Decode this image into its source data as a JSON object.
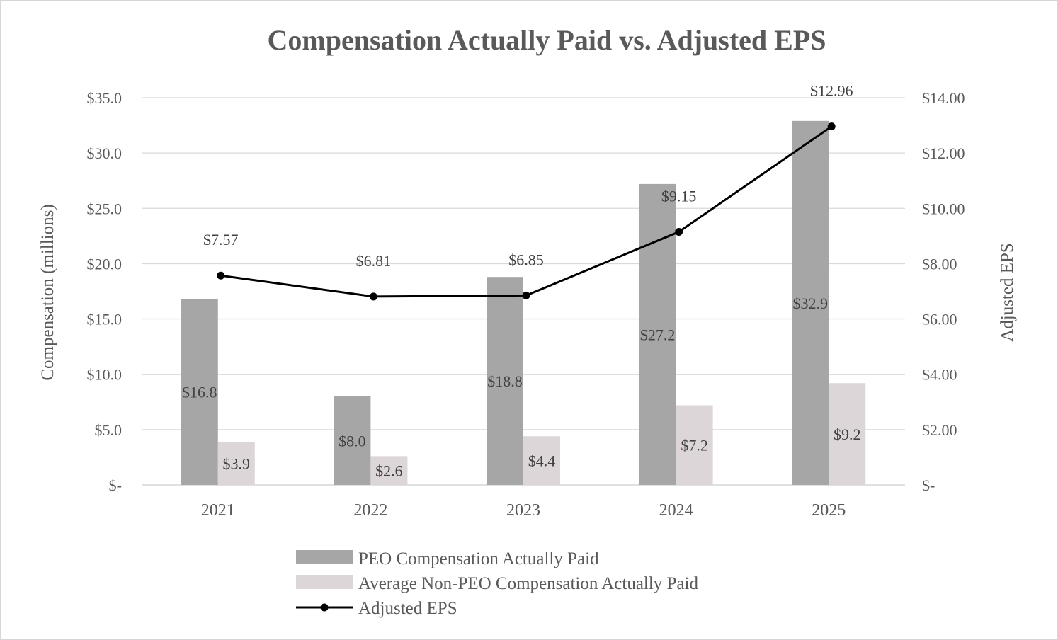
{
  "chart_data": {
    "type": "bar",
    "title": "Compensation Actually Paid vs. Adjusted EPS",
    "categories": [
      "2021",
      "2022",
      "2023",
      "2024",
      "2025"
    ],
    "ylabel": "Compensation (millions)",
    "y2label": "Adjusted EPS",
    "ylim": [
      0,
      35
    ],
    "y2lim": [
      0,
      14
    ],
    "yticks": [
      "$-",
      "$5.0",
      "$10.0",
      "$15.0",
      "$20.0",
      "$25.0",
      "$30.0",
      "$35.0"
    ],
    "y2ticks": [
      "$-",
      "$2.00",
      "$4.00",
      "$6.00",
      "$8.00",
      "$10.00",
      "$12.00",
      "$14.00"
    ],
    "grid": true,
    "legend_position": "bottom",
    "series": [
      {
        "name": "PEO Compensation Actually Paid",
        "type": "bar",
        "axis": "left",
        "color": "#a6a6a6",
        "values": [
          16.8,
          8.0,
          18.8,
          27.2,
          32.9
        ],
        "labels": [
          "$16.8",
          "$8.0",
          "$18.8",
          "$27.2",
          "$32.9"
        ]
      },
      {
        "name": "Average Non-PEO Compensation Actually Paid",
        "type": "bar",
        "axis": "left",
        "color": "#dcd6d8",
        "values": [
          3.9,
          2.6,
          4.4,
          7.2,
          9.2
        ],
        "labels": [
          "$3.9",
          "$2.6",
          "$4.4",
          "$7.2",
          "$9.2"
        ]
      },
      {
        "name": "Adjusted EPS",
        "type": "line",
        "axis": "right",
        "color": "#000000",
        "values": [
          7.57,
          6.81,
          6.85,
          9.15,
          12.96
        ],
        "labels": [
          "$7.57",
          "$6.81",
          "$6.85",
          "$9.15",
          "$12.96"
        ]
      }
    ]
  }
}
